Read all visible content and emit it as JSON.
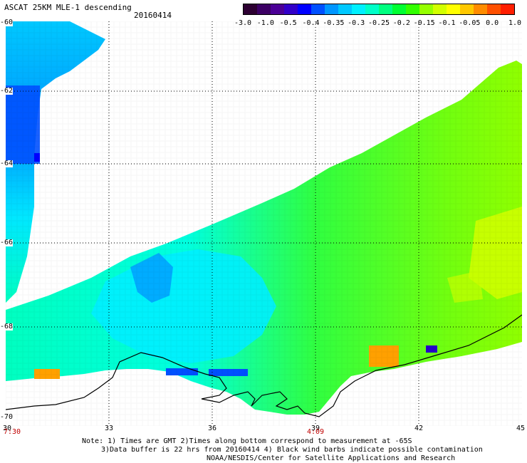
{
  "header": {
    "title": "ASCAT 25KM MLE-1 descending",
    "date": "20160414"
  },
  "colorbar": {
    "colors": [
      "#2d0032",
      "#3c0064",
      "#4b0096",
      "#3200c8",
      "#0000ff",
      "#0050ff",
      "#0096ff",
      "#00c8ff",
      "#00f0ff",
      "#00ffc8",
      "#00ff80",
      "#00ff32",
      "#32ff00",
      "#96ff00",
      "#d2ff00",
      "#ffff00",
      "#ffc800",
      "#ff8c00",
      "#ff5000",
      "#ff1e00"
    ],
    "ticks": [
      "-3.0",
      "-1.0",
      "-0.5",
      "-0.4",
      "-0.35",
      "-0.3",
      "-0.25",
      "-0.2",
      "-0.15",
      "-0.1",
      "-0.05",
      "0.0",
      "1.0"
    ]
  },
  "axes": {
    "lon_ticks": [
      "30",
      "33",
      "36",
      "39",
      "42",
      "45"
    ],
    "lat_ticks": [
      "-60",
      "-62",
      "-64",
      "-66",
      "-68",
      "-70"
    ],
    "time_labels": [
      "7:30",
      "4:09"
    ]
  },
  "notes": [
    "Note: 1) Times are GMT 2)Times along bottom correspond to measurement at -65S",
    "3)Data buffer is 22 hrs from 20160414 4) Black wind barbs indicate possible contamination",
    "NOAA/NESDIS/Center for Satellite Applications and Research"
  ],
  "map_colors": {
    "cyan": "#00ffe0",
    "light_blue": "#00c8ff",
    "blue": "#0050ff",
    "deep_blue": "#0000ff",
    "green": "#00ff50",
    "yellow_green": "#96ff00",
    "yellow": "#ffff00",
    "orange": "#ff8c00",
    "coast": "#000000",
    "grid": "#000000"
  }
}
